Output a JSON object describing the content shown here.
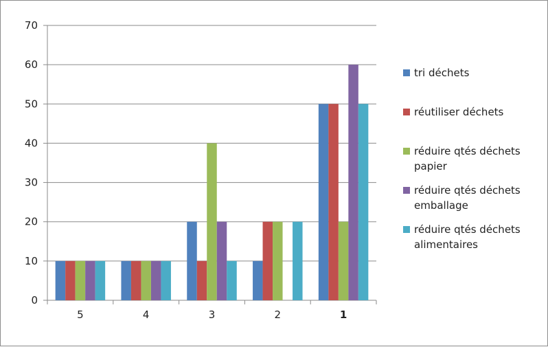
{
  "chart_data": {
    "type": "bar",
    "title": "",
    "xlabel": "",
    "ylabel": "",
    "categories": [
      "5",
      "4",
      "3",
      "2",
      "1"
    ],
    "ylim": [
      0,
      70
    ],
    "yticks": [
      0,
      10,
      20,
      30,
      40,
      50,
      60,
      70
    ],
    "grid": true,
    "legend_position": "right",
    "series": [
      {
        "name": "tri déchets",
        "legend_lines": [
          "tri déchets"
        ],
        "color": "#4F81BD",
        "values": [
          10,
          10,
          20,
          10,
          50
        ]
      },
      {
        "name": "réutiliser déchets",
        "legend_lines": [
          "réutiliser déchets"
        ],
        "color": "#C0504D",
        "values": [
          10,
          10,
          10,
          20,
          50
        ]
      },
      {
        "name": "réduire qtés déchets papier",
        "legend_lines": [
          "réduire qtés déchets",
          "papier"
        ],
        "color": "#9BBB59",
        "values": [
          10,
          10,
          40,
          20,
          20
        ]
      },
      {
        "name": "réduire qtés déchets emballage",
        "legend_lines": [
          "réduire qtés déchets",
          "emballage"
        ],
        "color": "#8064A2",
        "values": [
          10,
          10,
          20,
          0,
          60
        ]
      },
      {
        "name": "réduire qtés déchets alimentaires",
        "legend_lines": [
          "réduire qtés déchets",
          "alimentaires"
        ],
        "color": "#4BACC6",
        "values": [
          10,
          10,
          10,
          20,
          50
        ]
      }
    ]
  }
}
